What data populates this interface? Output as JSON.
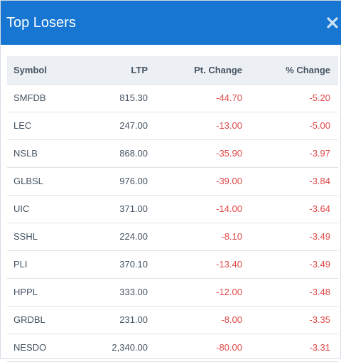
{
  "header": {
    "title": "Top Losers",
    "close_icon": "close-icon"
  },
  "table": {
    "columns": [
      "Symbol",
      "LTP",
      "Pt. Change",
      "% Change"
    ],
    "rows": [
      {
        "symbol": "SMFDB",
        "ltp": "815.30",
        "pt_change": "-44.70",
        "pct_change": "-5.20"
      },
      {
        "symbol": "LEC",
        "ltp": "247.00",
        "pt_change": "-13.00",
        "pct_change": "-5.00"
      },
      {
        "symbol": "NSLB",
        "ltp": "868.00",
        "pt_change": "-35.90",
        "pct_change": "-3.97"
      },
      {
        "symbol": "GLBSL",
        "ltp": "976.00",
        "pt_change": "-39.00",
        "pct_change": "-3.84"
      },
      {
        "symbol": "UIC",
        "ltp": "371.00",
        "pt_change": "-14.00",
        "pct_change": "-3.64"
      },
      {
        "symbol": "SSHL",
        "ltp": "224.00",
        "pt_change": "-8.10",
        "pct_change": "-3.49"
      },
      {
        "symbol": "PLI",
        "ltp": "370.10",
        "pt_change": "-13.40",
        "pct_change": "-3.49"
      },
      {
        "symbol": "HPPL",
        "ltp": "333.00",
        "pt_change": "-12.00",
        "pct_change": "-3.48"
      },
      {
        "symbol": "GRDBL",
        "ltp": "231.00",
        "pt_change": "-8.00",
        "pct_change": "-3.35"
      },
      {
        "symbol": "NESDO",
        "ltp": "2,340.00",
        "pt_change": "-80.00",
        "pct_change": "-3.31"
      }
    ]
  },
  "colors": {
    "header_bg": "#1676d2",
    "negative": "#e04848",
    "table_header_bg": "#eceff3"
  }
}
